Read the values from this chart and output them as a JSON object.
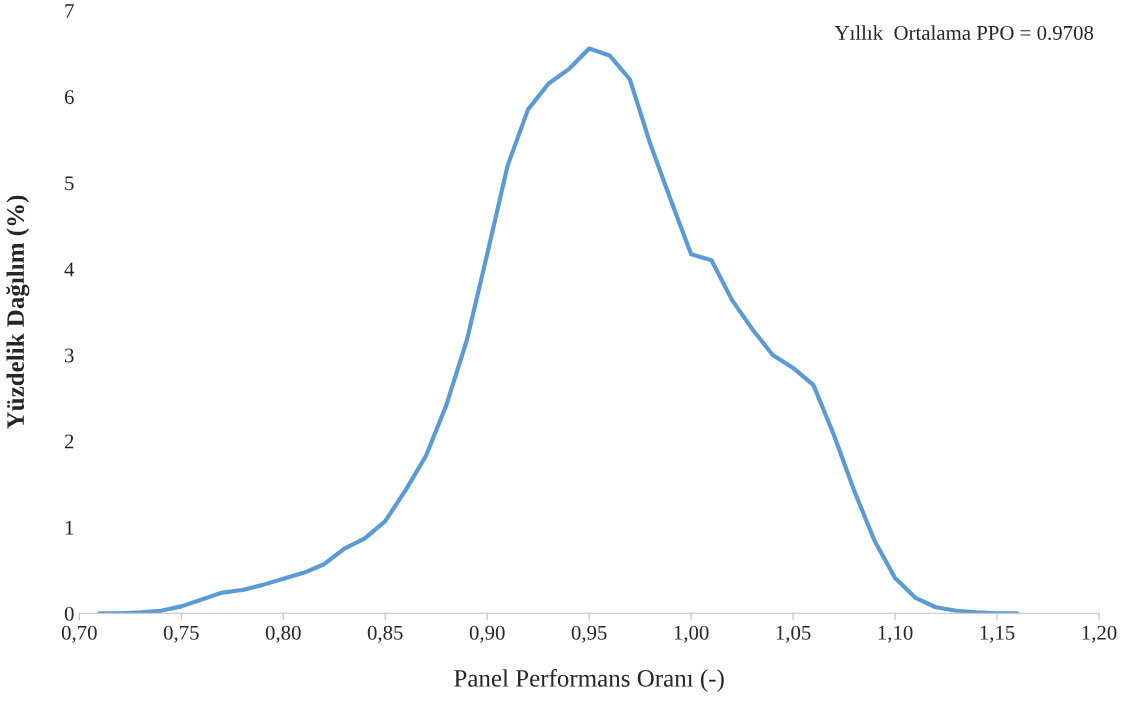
{
  "chart_data": {
    "type": "line",
    "xlabel": "Panel Performans Oranı (-)",
    "ylabel": "Yüzdelik Dağılım (%)",
    "annotations": [
      "Yıllık  Ortalama PPO = 0.9708"
    ],
    "x": [
      0.71,
      0.72,
      0.73,
      0.74,
      0.75,
      0.76,
      0.77,
      0.78,
      0.79,
      0.8,
      0.81,
      0.82,
      0.83,
      0.84,
      0.85,
      0.86,
      0.87,
      0.88,
      0.89,
      0.9,
      0.91,
      0.92,
      0.93,
      0.94,
      0.95,
      0.96,
      0.97,
      0.98,
      0.99,
      1.0,
      1.01,
      1.02,
      1.03,
      1.04,
      1.05,
      1.06,
      1.07,
      1.08,
      1.09,
      1.1,
      1.11,
      1.12,
      1.13,
      1.14,
      1.15,
      1.16
    ],
    "series": [
      {
        "color": "#5b9bd5",
        "values": [
          0,
          0,
          0.01,
          0.03,
          0.08,
          0.16,
          0.24,
          0.27,
          0.33,
          0.4,
          0.47,
          0.57,
          0.75,
          0.87,
          1.07,
          1.43,
          1.83,
          2.42,
          3.17,
          4.17,
          5.2,
          5.85,
          6.15,
          6.32,
          6.56,
          6.48,
          6.2,
          5.45,
          4.8,
          4.17,
          4.1,
          3.64,
          3.3,
          3.0,
          2.85,
          2.65,
          2.07,
          1.42,
          0.84,
          0.41,
          0.18,
          0.07,
          0.03,
          0.01,
          0,
          0
        ]
      }
    ],
    "xlim": [
      0.7,
      1.2
    ],
    "xticks": [
      {
        "value": 0.7,
        "label": "0,70"
      },
      {
        "value": 0.75,
        "label": "0,75"
      },
      {
        "value": 0.8,
        "label": "0,80"
      },
      {
        "value": 0.85,
        "label": "0,85"
      },
      {
        "value": 0.9,
        "label": "0,90"
      },
      {
        "value": 0.95,
        "label": "0,95"
      },
      {
        "value": 1.0,
        "label": "1,00"
      },
      {
        "value": 1.05,
        "label": "1,05"
      },
      {
        "value": 1.1,
        "label": "1,10"
      },
      {
        "value": 1.15,
        "label": "1,15"
      },
      {
        "value": 1.2,
        "label": "1,20"
      }
    ],
    "ylim": [
      0,
      7
    ],
    "yticks": [
      0,
      1,
      2,
      3,
      4,
      5,
      6,
      7
    ],
    "grid": false,
    "marker": "none",
    "line_style": "solid"
  }
}
